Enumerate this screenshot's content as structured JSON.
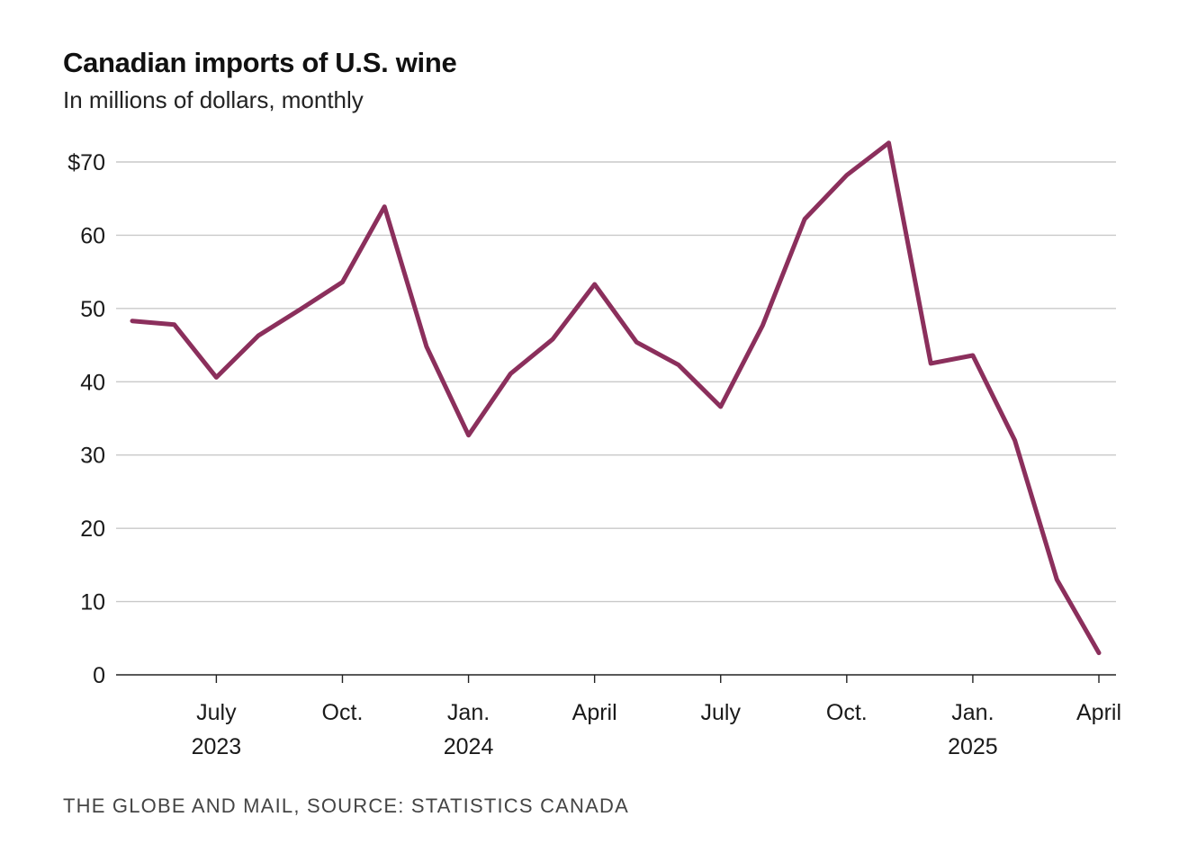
{
  "chart_data": {
    "type": "line",
    "title": "Canadian imports of U.S. wine",
    "subtitle": "In millions of dollars, monthly",
    "source": "THE GLOBE AND MAIL, SOURCE: STATISTICS CANADA",
    "xlabel": "",
    "ylabel": "",
    "ylim": [
      0,
      70
    ],
    "x": [
      "2023-05",
      "2023-06",
      "2023-07",
      "2023-08",
      "2023-09",
      "2023-10",
      "2023-11",
      "2023-12",
      "2024-01",
      "2024-02",
      "2024-03",
      "2024-04",
      "2024-05",
      "2024-06",
      "2024-07",
      "2024-08",
      "2024-09",
      "2024-10",
      "2024-11",
      "2024-12",
      "2025-01",
      "2025-02",
      "2025-03",
      "2025-04"
    ],
    "series": [
      {
        "color": "#8b2f5c",
        "values": [
          48.3,
          47.8,
          40.6,
          46.3,
          49.9,
          53.6,
          63.9,
          44.8,
          32.7,
          41.1,
          45.8,
          53.3,
          45.4,
          42.3,
          36.6,
          47.7,
          62.2,
          68.2,
          72.6,
          42.5,
          43.6,
          32.0,
          13.0,
          3.0
        ]
      }
    ],
    "y_ticks": [
      {
        "value": 70,
        "label": "$70"
      },
      {
        "value": 60,
        "label": "60"
      },
      {
        "value": 50,
        "label": "50"
      },
      {
        "value": 40,
        "label": "40"
      },
      {
        "value": 30,
        "label": "30"
      },
      {
        "value": 20,
        "label": "20"
      },
      {
        "value": 10,
        "label": "10"
      },
      {
        "value": 0,
        "label": "0"
      }
    ],
    "x_ticks": [
      {
        "index": 2,
        "line1": "July",
        "line2": "2023"
      },
      {
        "index": 5,
        "line1": "Oct.",
        "line2": ""
      },
      {
        "index": 8,
        "line1": "Jan.",
        "line2": "2024"
      },
      {
        "index": 11,
        "line1": "April",
        "line2": ""
      },
      {
        "index": 14,
        "line1": "July",
        "line2": ""
      },
      {
        "index": 17,
        "line1": "Oct.",
        "line2": ""
      },
      {
        "index": 20,
        "line1": "Jan.",
        "line2": "2025"
      },
      {
        "index": 23,
        "line1": "April",
        "line2": ""
      }
    ],
    "grid": true
  }
}
